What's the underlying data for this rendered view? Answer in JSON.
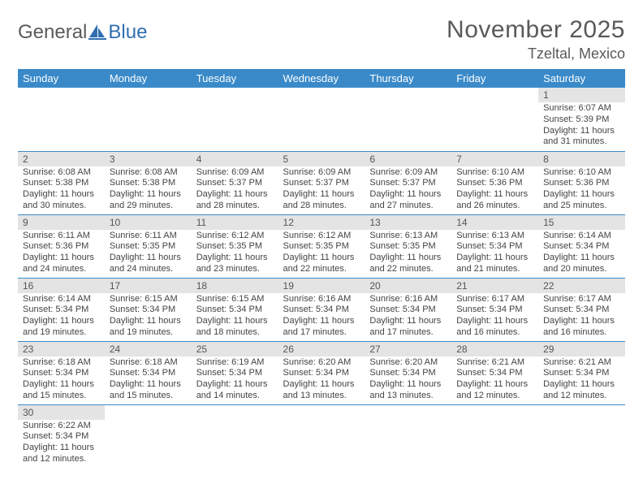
{
  "logo": {
    "part1": "General",
    "part2": "Blue"
  },
  "title": "November 2025",
  "location": "Tzeltal, Mexico",
  "colors": {
    "header_bg": "#3a8ac9",
    "header_text": "#ffffff",
    "daynum_bg": "#e4e4e4",
    "rule": "#3a8ac9",
    "body_text": "#444444",
    "title_text": "#5a5a5a"
  },
  "weekdays": [
    "Sunday",
    "Monday",
    "Tuesday",
    "Wednesday",
    "Thursday",
    "Friday",
    "Saturday"
  ],
  "first_weekday_index": 6,
  "days": [
    {
      "num": "1",
      "sunrise": "Sunrise: 6:07 AM",
      "sunset": "Sunset: 5:39 PM",
      "daylight": "Daylight: 11 hours and 31 minutes."
    },
    {
      "num": "2",
      "sunrise": "Sunrise: 6:08 AM",
      "sunset": "Sunset: 5:38 PM",
      "daylight": "Daylight: 11 hours and 30 minutes."
    },
    {
      "num": "3",
      "sunrise": "Sunrise: 6:08 AM",
      "sunset": "Sunset: 5:38 PM",
      "daylight": "Daylight: 11 hours and 29 minutes."
    },
    {
      "num": "4",
      "sunrise": "Sunrise: 6:09 AM",
      "sunset": "Sunset: 5:37 PM",
      "daylight": "Daylight: 11 hours and 28 minutes."
    },
    {
      "num": "5",
      "sunrise": "Sunrise: 6:09 AM",
      "sunset": "Sunset: 5:37 PM",
      "daylight": "Daylight: 11 hours and 28 minutes."
    },
    {
      "num": "6",
      "sunrise": "Sunrise: 6:09 AM",
      "sunset": "Sunset: 5:37 PM",
      "daylight": "Daylight: 11 hours and 27 minutes."
    },
    {
      "num": "7",
      "sunrise": "Sunrise: 6:10 AM",
      "sunset": "Sunset: 5:36 PM",
      "daylight": "Daylight: 11 hours and 26 minutes."
    },
    {
      "num": "8",
      "sunrise": "Sunrise: 6:10 AM",
      "sunset": "Sunset: 5:36 PM",
      "daylight": "Daylight: 11 hours and 25 minutes."
    },
    {
      "num": "9",
      "sunrise": "Sunrise: 6:11 AM",
      "sunset": "Sunset: 5:36 PM",
      "daylight": "Daylight: 11 hours and 24 minutes."
    },
    {
      "num": "10",
      "sunrise": "Sunrise: 6:11 AM",
      "sunset": "Sunset: 5:35 PM",
      "daylight": "Daylight: 11 hours and 24 minutes."
    },
    {
      "num": "11",
      "sunrise": "Sunrise: 6:12 AM",
      "sunset": "Sunset: 5:35 PM",
      "daylight": "Daylight: 11 hours and 23 minutes."
    },
    {
      "num": "12",
      "sunrise": "Sunrise: 6:12 AM",
      "sunset": "Sunset: 5:35 PM",
      "daylight": "Daylight: 11 hours and 22 minutes."
    },
    {
      "num": "13",
      "sunrise": "Sunrise: 6:13 AM",
      "sunset": "Sunset: 5:35 PM",
      "daylight": "Daylight: 11 hours and 22 minutes."
    },
    {
      "num": "14",
      "sunrise": "Sunrise: 6:13 AM",
      "sunset": "Sunset: 5:34 PM",
      "daylight": "Daylight: 11 hours and 21 minutes."
    },
    {
      "num": "15",
      "sunrise": "Sunrise: 6:14 AM",
      "sunset": "Sunset: 5:34 PM",
      "daylight": "Daylight: 11 hours and 20 minutes."
    },
    {
      "num": "16",
      "sunrise": "Sunrise: 6:14 AM",
      "sunset": "Sunset: 5:34 PM",
      "daylight": "Daylight: 11 hours and 19 minutes."
    },
    {
      "num": "17",
      "sunrise": "Sunrise: 6:15 AM",
      "sunset": "Sunset: 5:34 PM",
      "daylight": "Daylight: 11 hours and 19 minutes."
    },
    {
      "num": "18",
      "sunrise": "Sunrise: 6:15 AM",
      "sunset": "Sunset: 5:34 PM",
      "daylight": "Daylight: 11 hours and 18 minutes."
    },
    {
      "num": "19",
      "sunrise": "Sunrise: 6:16 AM",
      "sunset": "Sunset: 5:34 PM",
      "daylight": "Daylight: 11 hours and 17 minutes."
    },
    {
      "num": "20",
      "sunrise": "Sunrise: 6:16 AM",
      "sunset": "Sunset: 5:34 PM",
      "daylight": "Daylight: 11 hours and 17 minutes."
    },
    {
      "num": "21",
      "sunrise": "Sunrise: 6:17 AM",
      "sunset": "Sunset: 5:34 PM",
      "daylight": "Daylight: 11 hours and 16 minutes."
    },
    {
      "num": "22",
      "sunrise": "Sunrise: 6:17 AM",
      "sunset": "Sunset: 5:34 PM",
      "daylight": "Daylight: 11 hours and 16 minutes."
    },
    {
      "num": "23",
      "sunrise": "Sunrise: 6:18 AM",
      "sunset": "Sunset: 5:34 PM",
      "daylight": "Daylight: 11 hours and 15 minutes."
    },
    {
      "num": "24",
      "sunrise": "Sunrise: 6:18 AM",
      "sunset": "Sunset: 5:34 PM",
      "daylight": "Daylight: 11 hours and 15 minutes."
    },
    {
      "num": "25",
      "sunrise": "Sunrise: 6:19 AM",
      "sunset": "Sunset: 5:34 PM",
      "daylight": "Daylight: 11 hours and 14 minutes."
    },
    {
      "num": "26",
      "sunrise": "Sunrise: 6:20 AM",
      "sunset": "Sunset: 5:34 PM",
      "daylight": "Daylight: 11 hours and 13 minutes."
    },
    {
      "num": "27",
      "sunrise": "Sunrise: 6:20 AM",
      "sunset": "Sunset: 5:34 PM",
      "daylight": "Daylight: 11 hours and 13 minutes."
    },
    {
      "num": "28",
      "sunrise": "Sunrise: 6:21 AM",
      "sunset": "Sunset: 5:34 PM",
      "daylight": "Daylight: 11 hours and 12 minutes."
    },
    {
      "num": "29",
      "sunrise": "Sunrise: 6:21 AM",
      "sunset": "Sunset: 5:34 PM",
      "daylight": "Daylight: 11 hours and 12 minutes."
    },
    {
      "num": "30",
      "sunrise": "Sunrise: 6:22 AM",
      "sunset": "Sunset: 5:34 PM",
      "daylight": "Daylight: 11 hours and 12 minutes."
    }
  ]
}
